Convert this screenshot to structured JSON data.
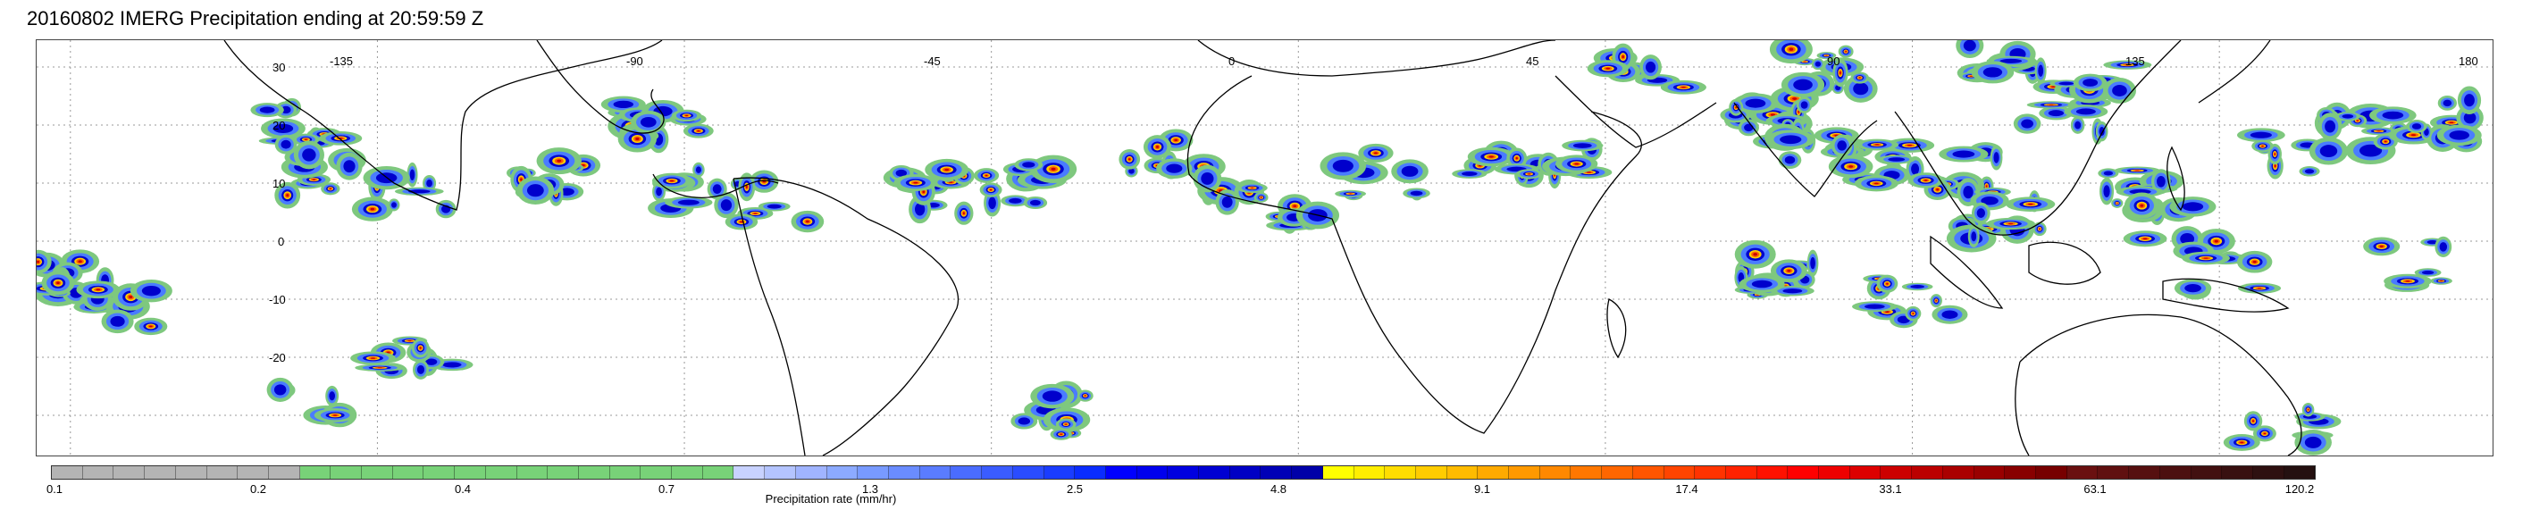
{
  "title": "20160802 IMERG Precipitation ending at 20:59:59 Z",
  "map": {
    "longitude_labels": [
      "-135",
      "-90",
      "-45",
      "0",
      "45",
      "90",
      "135",
      "180"
    ],
    "latitude_labels": [
      "30",
      "20",
      "10",
      "0",
      "-10",
      "-20"
    ],
    "graticule": "dotted",
    "land_outline_color": "#000000",
    "background_color": "#ffffff"
  },
  "colorbar": {
    "title": "Precipitation rate (mm/hr)",
    "tick_labels": [
      "0.1",
      "0.2",
      "0.4",
      "0.7",
      "1.3",
      "2.5",
      "4.8",
      "9.1",
      "17.4",
      "33.1",
      "63.1",
      "120.2"
    ],
    "colors": [
      "#b4b4b4",
      "#b4b4b4",
      "#b4b4b4",
      "#b4b4b4",
      "#b4b4b4",
      "#b4b4b4",
      "#b4b4b4",
      "#b4b4b4",
      "#78d278",
      "#78d278",
      "#78d278",
      "#78d278",
      "#78d278",
      "#78d278",
      "#78d278",
      "#78d278",
      "#78d278",
      "#78d278",
      "#78d278",
      "#78d278",
      "#78d278",
      "#78d278",
      "#c8d2ff",
      "#b4c4ff",
      "#a0b4ff",
      "#8caaff",
      "#789aff",
      "#6a8cff",
      "#5a7cff",
      "#4a6cff",
      "#3a5cff",
      "#2a4cff",
      "#1a3cff",
      "#0a2cff",
      "#0000ff",
      "#0000ee",
      "#0000e0",
      "#0000d2",
      "#0000c4",
      "#0000b6",
      "#0000a8",
      "#ffff00",
      "#ffee00",
      "#ffdd00",
      "#ffcc00",
      "#ffbb00",
      "#ffaa00",
      "#ff9900",
      "#ff8800",
      "#ff7700",
      "#ff6600",
      "#ff5500",
      "#ff4400",
      "#ff3300",
      "#ff2200",
      "#ff1100",
      "#ff0000",
      "#ee0000",
      "#dd0000",
      "#cc0000",
      "#bb0000",
      "#aa0000",
      "#990000",
      "#880000",
      "#770000",
      "#6a1010",
      "#601010",
      "#561010",
      "#4c1010",
      "#421010",
      "#381010",
      "#2e1010",
      "#241010"
    ]
  },
  "precip_palette": {
    "light": "#7ec87e",
    "moderate": "#4a7cff",
    "heavy": "#0000cc",
    "strong": "#ffd000",
    "very_strong": "#ff6000",
    "extreme": "#cc0000"
  }
}
